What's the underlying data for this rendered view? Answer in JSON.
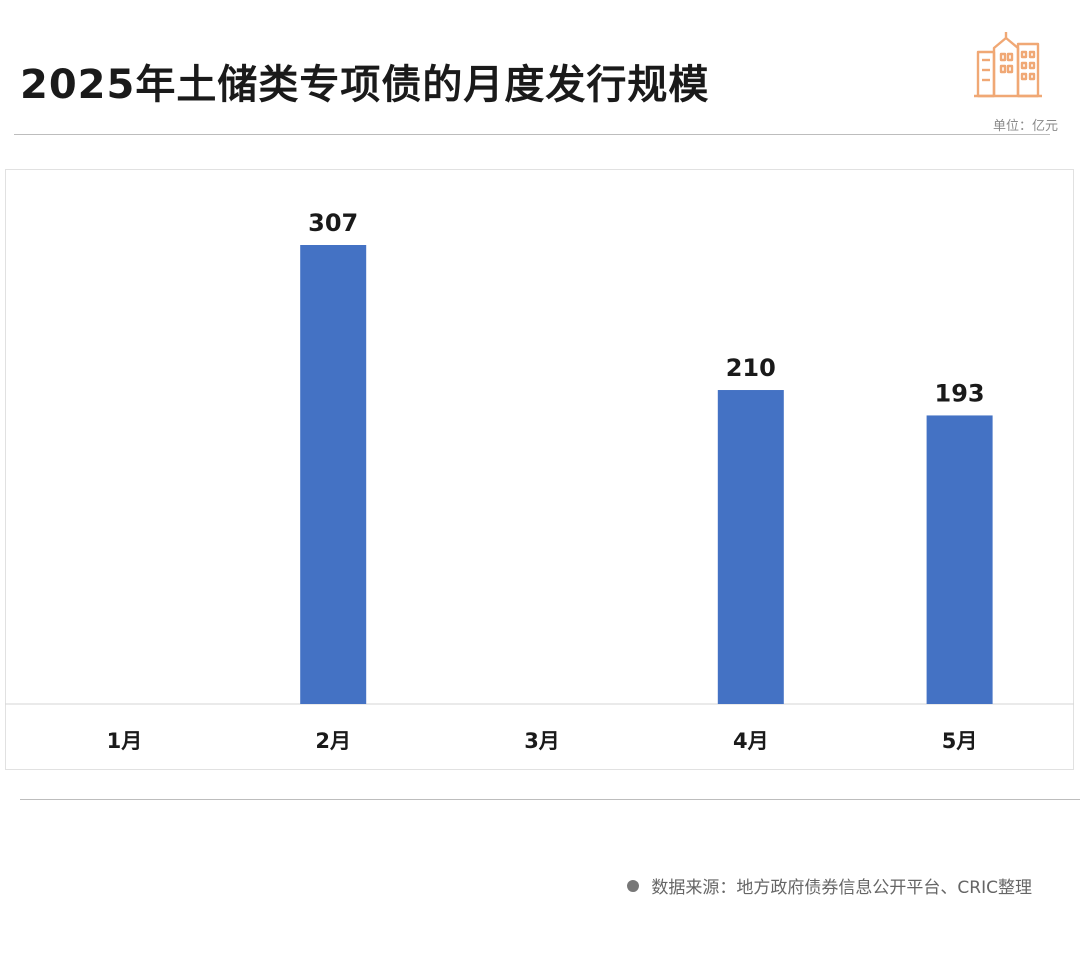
{
  "header": {
    "title": "2025年土储类专项债的月度发行规模",
    "unit": "单位：亿元",
    "logo_icon": "city-buildings-icon"
  },
  "footer": {
    "source": "数据来源：地方政府债券信息公开平台、CRIC整理"
  },
  "colors": {
    "bar": "#4472C4",
    "logo": "#F0A875"
  },
  "chart_data": {
    "type": "bar",
    "categories": [
      "1月",
      "2月",
      "3月",
      "4月",
      "5月"
    ],
    "values": [
      null,
      307,
      null,
      210,
      193
    ],
    "ylim": [
      0,
      307
    ],
    "grid": false,
    "title": "",
    "xlabel": "",
    "ylabel": ""
  }
}
